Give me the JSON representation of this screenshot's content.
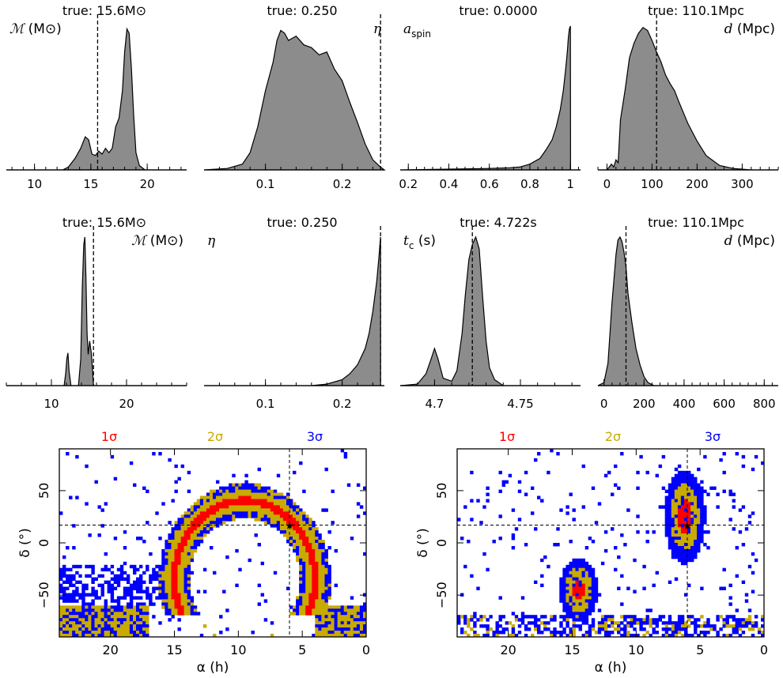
{
  "colors": {
    "fill": "#8c8c8c",
    "sigma1": "#ff0000",
    "sigma2": "#c8aa00",
    "sigma3": "#0000ff"
  },
  "chart_data": [
    {
      "type": "area",
      "ylabel_math": "ℳ",
      "ylabel_unit": "(M⊙)",
      "label_pos": "left",
      "true_label": "true:",
      "true_value": "15.6M⊙",
      "truth": 15.6,
      "xlim": [
        7.5,
        23.5
      ],
      "xticks": [
        "10",
        "15",
        "20"
      ],
      "xtick_values": [
        10,
        15,
        20
      ],
      "x": [
        7.5,
        12.5,
        13.0,
        13.6,
        14.1,
        14.5,
        14.8,
        15.1,
        15.4,
        15.7,
        16.0,
        16.3,
        16.6,
        16.9,
        17.2,
        17.5,
        17.8,
        18.0,
        18.2,
        18.4,
        18.6,
        18.8,
        19.0,
        19.3,
        19.8,
        23.5
      ],
      "values": [
        0,
        0,
        0.02,
        0.08,
        0.15,
        0.23,
        0.21,
        0.11,
        0.1,
        0.13,
        0.11,
        0.15,
        0.12,
        0.15,
        0.3,
        0.36,
        0.55,
        0.82,
        0.98,
        0.95,
        0.7,
        0.38,
        0.12,
        0.03,
        0,
        0
      ]
    },
    {
      "type": "area",
      "ylabel_math": "η",
      "ylabel_unit": "",
      "label_pos": "right",
      "true_label": "true:",
      "true_value": "0.250",
      "truth": 0.25,
      "xlim": [
        0.02,
        0.255
      ],
      "xticks": [
        "0.1",
        "0.2"
      ],
      "xtick_values": [
        0.1,
        0.2
      ],
      "x": [
        0.02,
        0.05,
        0.07,
        0.08,
        0.09,
        0.1,
        0.11,
        0.115,
        0.12,
        0.125,
        0.13,
        0.14,
        0.15,
        0.16,
        0.17,
        0.18,
        0.19,
        0.2,
        0.21,
        0.22,
        0.23,
        0.24,
        0.25,
        0.255
      ],
      "values": [
        0,
        0.01,
        0.04,
        0.12,
        0.3,
        0.55,
        0.75,
        0.9,
        0.97,
        0.95,
        0.9,
        0.93,
        0.87,
        0.85,
        0.8,
        0.82,
        0.7,
        0.62,
        0.47,
        0.33,
        0.18,
        0.07,
        0.02,
        0
      ]
    },
    {
      "type": "area",
      "ylabel_math": "a",
      "ylabel_sub": "spin",
      "ylabel_unit": "",
      "label_pos": "left",
      "true_label": "true:",
      "true_value": "0.0000",
      "truth": 0.0,
      "xlim": [
        0.16,
        1.05
      ],
      "xticks": [
        "0.2",
        "0.4",
        "0.6",
        "0.8",
        "1"
      ],
      "xtick_values": [
        0.2,
        0.4,
        0.6,
        0.8,
        1.0
      ],
      "x": [
        0.16,
        0.6,
        0.7,
        0.75,
        0.8,
        0.85,
        0.88,
        0.91,
        0.93,
        0.95,
        0.965,
        0.975,
        0.985,
        0.99,
        0.995,
        1.0,
        1.001,
        1.05
      ],
      "values": [
        0,
        0.01,
        0.015,
        0.02,
        0.04,
        0.08,
        0.14,
        0.21,
        0.3,
        0.42,
        0.55,
        0.68,
        0.82,
        0.92,
        0.98,
        1.0,
        0,
        0
      ]
    },
    {
      "type": "area",
      "ylabel_math": "d",
      "ylabel_unit": "(Mpc)",
      "label_pos": "right",
      "true_label": "true:",
      "true_value": "110.1Mpc",
      "truth": 110.1,
      "xlim": [
        -20,
        380
      ],
      "xticks": [
        "0",
        "100",
        "200",
        "300"
      ],
      "xtick_values": [
        0,
        100,
        200,
        300
      ],
      "x": [
        -20,
        0,
        10,
        15,
        20,
        25,
        30,
        40,
        50,
        60,
        70,
        80,
        90,
        100,
        110,
        120,
        130,
        140,
        150,
        160,
        180,
        200,
        220,
        250,
        280,
        320,
        380
      ],
      "values": [
        0,
        0,
        0.04,
        0.02,
        0.07,
        0.05,
        0.35,
        0.55,
        0.78,
        0.88,
        0.95,
        0.99,
        0.97,
        0.9,
        0.82,
        0.75,
        0.66,
        0.6,
        0.55,
        0.47,
        0.32,
        0.2,
        0.1,
        0.03,
        0.01,
        0,
        0
      ]
    },
    {
      "type": "area",
      "ylabel_math": "ℳ",
      "ylabel_unit": "(M⊙)",
      "label_pos": "right",
      "true_label": "true:",
      "true_value": "15.6M⊙",
      "truth": 15.6,
      "xlim": [
        4,
        28
      ],
      "xticks": [
        "10",
        "20"
      ],
      "xtick_values": [
        10,
        20
      ],
      "x": [
        4,
        11.7,
        11.9,
        12.05,
        12.2,
        12.35,
        12.6,
        13.6,
        13.9,
        14.1,
        14.3,
        14.45,
        14.6,
        14.75,
        14.9,
        15.1,
        15.3,
        15.45,
        15.6,
        28
      ],
      "values": [
        0,
        0,
        0.08,
        0.18,
        0.22,
        0.1,
        0,
        0,
        0.18,
        0.65,
        0.95,
        1.0,
        0.72,
        0.35,
        0.21,
        0.3,
        0.22,
        0.12,
        0,
        0
      ]
    },
    {
      "type": "area",
      "ylabel_math": "η",
      "ylabel_unit": "",
      "label_pos": "left",
      "true_label": "true:",
      "true_value": "0.250",
      "truth": 0.25,
      "xlim": [
        0.02,
        0.255
      ],
      "xticks": [
        "0.1",
        "0.2"
      ],
      "xtick_values": [
        0.1,
        0.2
      ],
      "x": [
        0.02,
        0.16,
        0.18,
        0.2,
        0.21,
        0.22,
        0.23,
        0.235,
        0.24,
        0.245,
        0.248,
        0.25,
        0.2501,
        0.255
      ],
      "values": [
        0,
        0,
        0.01,
        0.04,
        0.08,
        0.14,
        0.25,
        0.35,
        0.5,
        0.7,
        0.87,
        1.0,
        0,
        0
      ]
    },
    {
      "type": "area",
      "ylabel_math": "t",
      "ylabel_sub": "c",
      "ylabel_unit": "(s)",
      "label_pos": "left",
      "true_label": "true:",
      "true_value": "4.722s",
      "truth": 4.722,
      "xlim": [
        4.68,
        4.785
      ],
      "xticks": [
        "4.7",
        "4.75"
      ],
      "xtick_values": [
        4.7,
        4.75
      ],
      "x": [
        4.68,
        4.69,
        4.695,
        4.698,
        4.7,
        4.702,
        4.705,
        4.71,
        4.713,
        4.716,
        4.718,
        4.72,
        4.722,
        4.724,
        4.726,
        4.728,
        4.73,
        4.732,
        4.735,
        4.74,
        4.785
      ],
      "values": [
        0,
        0.01,
        0.08,
        0.18,
        0.25,
        0.18,
        0.05,
        0.03,
        0.1,
        0.35,
        0.62,
        0.85,
        0.95,
        1.0,
        0.92,
        0.6,
        0.3,
        0.12,
        0.04,
        0,
        0
      ]
    },
    {
      "type": "area",
      "ylabel_math": "d",
      "ylabel_unit": "(Mpc)",
      "label_pos": "right",
      "true_label": "true:",
      "true_value": "110.1Mpc",
      "truth": 110.1,
      "xlim": [
        -30,
        870
      ],
      "xticks": [
        "0",
        "200",
        "400",
        "600",
        "800"
      ],
      "xtick_values": [
        0,
        200,
        400,
        600,
        800
      ],
      "x": [
        -30,
        0,
        20,
        40,
        60,
        70,
        80,
        90,
        100,
        110,
        120,
        140,
        160,
        180,
        200,
        220,
        250,
        870
      ],
      "values": [
        0,
        0.02,
        0.15,
        0.55,
        0.88,
        0.98,
        1.0,
        0.97,
        0.9,
        0.8,
        0.62,
        0.42,
        0.25,
        0.14,
        0.06,
        0.02,
        0,
        0
      ]
    },
    {
      "type": "heatmap",
      "xlabel": "α (h)",
      "ylabel": "δ (°)",
      "xlim": [
        24,
        0
      ],
      "ylim": [
        -90,
        90
      ],
      "xticks": [
        "20",
        "15",
        "10",
        "5",
        "0"
      ],
      "yticks": [
        "50",
        "0",
        "−50"
      ],
      "xtick_values": [
        20,
        15,
        10,
        5,
        0
      ],
      "ytick_values": [
        50,
        0,
        -50
      ],
      "true_point": [
        6,
        17
      ],
      "legend": [
        {
          "label": "1σ",
          "color": "#ff0000"
        },
        {
          "label": "2σ",
          "color": "#c8aa00"
        },
        {
          "label": "3σ",
          "color": "#0000ff"
        }
      ],
      "arc": {
        "center_ra": 9.5,
        "center_dec": -35,
        "radius_ra": 5.5,
        "radius_dec": 75,
        "extra": "left"
      }
    },
    {
      "type": "heatmap",
      "xlabel": "α (h)",
      "ylabel": "δ (°)",
      "xlim": [
        24,
        0
      ],
      "ylim": [
        -90,
        90
      ],
      "xticks": [
        "20",
        "15",
        "10",
        "5",
        "0"
      ],
      "yticks": [
        "50",
        "0",
        "−50"
      ],
      "xtick_values": [
        20,
        15,
        10,
        5,
        0
      ],
      "ytick_values": [
        50,
        0,
        -50
      ],
      "true_point": [
        6,
        17
      ],
      "legend": [
        {
          "label": "1σ",
          "color": "#ff0000"
        },
        {
          "label": "2σ",
          "color": "#c8aa00"
        },
        {
          "label": "3σ",
          "color": "#0000ff"
        }
      ],
      "blobs": [
        {
          "ra": 6.2,
          "dec": 25,
          "r_ra": 1.6,
          "r_dec": 45
        },
        {
          "ra": 14.5,
          "dec": -45,
          "r_ra": 1.5,
          "r_dec": 30
        }
      ]
    }
  ]
}
